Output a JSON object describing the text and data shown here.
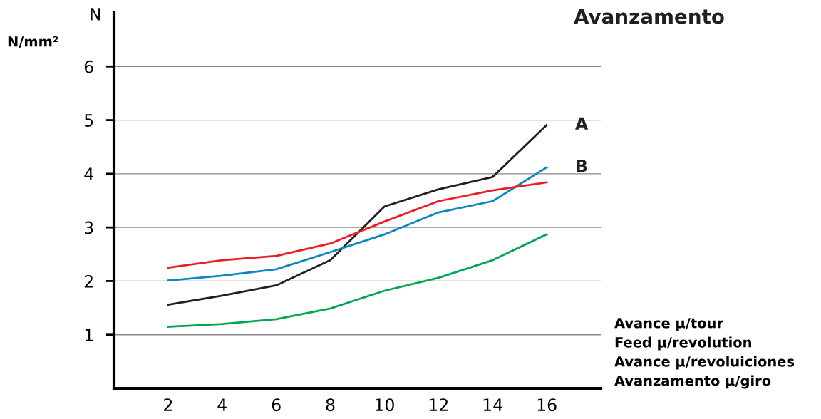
{
  "chart_data": {
    "type": "line",
    "title": "Avanzamento",
    "ylabel": "N/mm²",
    "annotations": [
      "N",
      "Avance μ/tour",
      "Feed μ/revolution",
      "Avance μ/revoluiciones",
      "Avanzamento μ/giro"
    ],
    "x": [
      2,
      4,
      6,
      8,
      10,
      12,
      14,
      16
    ],
    "series": [
      {
        "name": "A",
        "color": "#231f20",
        "values": [
          1.56,
          1.73,
          1.92,
          2.39,
          3.39,
          3.71,
          3.94,
          4.91
        ]
      },
      {
        "name": "B",
        "color": "#0a86c0",
        "values": [
          2.01,
          2.1,
          2.22,
          2.54,
          2.87,
          3.28,
          3.49,
          4.12
        ]
      },
      {
        "color": "#ec1c24",
        "values": [
          2.25,
          2.39,
          2.47,
          2.7,
          3.11,
          3.49,
          3.69,
          3.84
        ]
      },
      {
        "color": "#00a650",
        "values": [
          1.15,
          1.2,
          1.29,
          1.49,
          1.82,
          2.06,
          2.39,
          2.87
        ]
      }
    ],
    "xlim": [
      0,
      18
    ],
    "ylim": [
      0,
      7
    ],
    "xticks": [
      2,
      4,
      6,
      8,
      10,
      12,
      14,
      16
    ],
    "yticks": [
      1,
      2,
      3,
      4,
      5,
      6
    ],
    "grid": "y",
    "legend": false,
    "marker": "none",
    "line_style": "solid"
  }
}
